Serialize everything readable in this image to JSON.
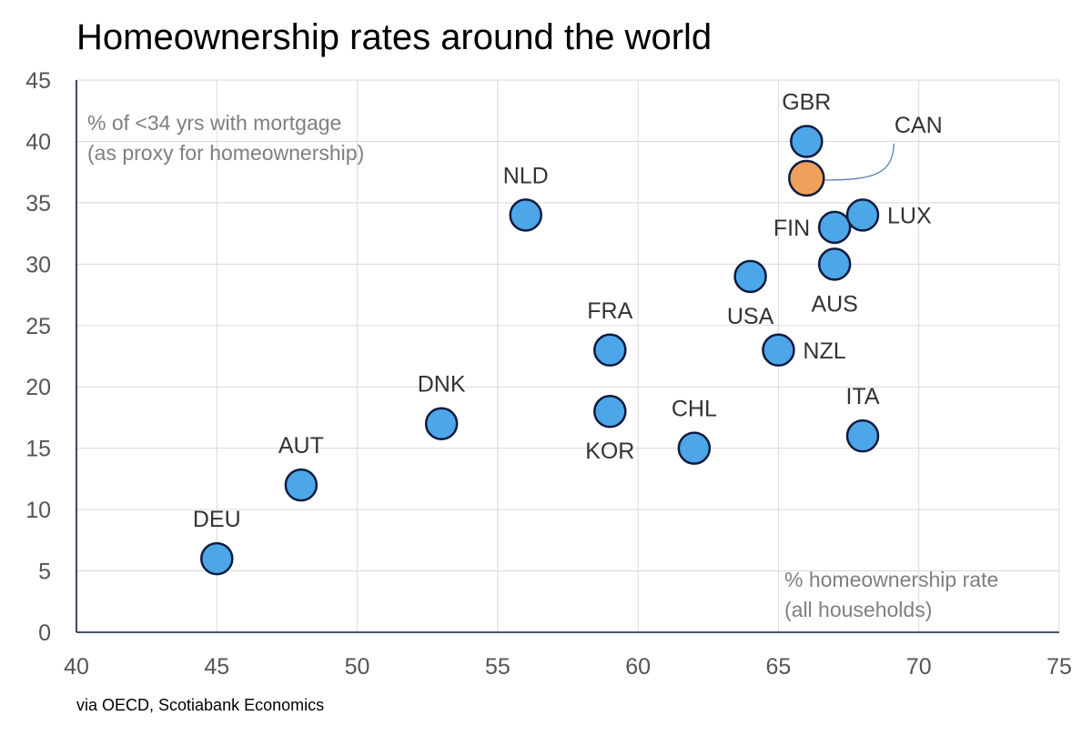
{
  "chart_data": {
    "type": "scatter",
    "title": "Homeownership rates around the world",
    "ylabel_lines": [
      "% of <34 yrs with mortgage",
      "(as proxy for homeownership)"
    ],
    "xlabel_lines": [
      "% homeownership rate",
      "(all households)"
    ],
    "source": "via OECD, Scotiabank Economics",
    "xlim": [
      40,
      75
    ],
    "ylim": [
      0,
      45
    ],
    "xticks": [
      "40",
      "45",
      "50",
      "55",
      "60",
      "65",
      "70",
      "75"
    ],
    "yticks": [
      "0",
      "5",
      "10",
      "15",
      "20",
      "25",
      "30",
      "35",
      "40",
      "45"
    ],
    "grid": true,
    "colors": {
      "default": "#4da6e8",
      "highlight": "#f0a05a",
      "outline": "#0d1b3e"
    },
    "points": [
      {
        "label": "DEU",
        "x": 45,
        "y": 6,
        "pos": "above"
      },
      {
        "label": "AUT",
        "x": 48,
        "y": 12,
        "pos": "above"
      },
      {
        "label": "DNK",
        "x": 53,
        "y": 17,
        "pos": "above"
      },
      {
        "label": "NLD",
        "x": 56,
        "y": 34,
        "pos": "above"
      },
      {
        "label": "FRA",
        "x": 59,
        "y": 23,
        "pos": "above"
      },
      {
        "label": "KOR",
        "x": 59,
        "y": 18,
        "pos": "below"
      },
      {
        "label": "CHL",
        "x": 62,
        "y": 15,
        "pos": "above"
      },
      {
        "label": "USA",
        "x": 64,
        "y": 29,
        "pos": "below"
      },
      {
        "label": "NZL",
        "x": 65,
        "y": 23,
        "pos": "right"
      },
      {
        "label": "GBR",
        "x": 66,
        "y": 40,
        "pos": "above"
      },
      {
        "label": "CAN",
        "x": 66,
        "y": 37,
        "pos": "callout",
        "highlight": true
      },
      {
        "label": "FIN",
        "x": 67,
        "y": 33,
        "pos": "left"
      },
      {
        "label": "AUS",
        "x": 67,
        "y": 30,
        "pos": "below"
      },
      {
        "label": "LUX",
        "x": 68,
        "y": 34,
        "pos": "right"
      },
      {
        "label": "ITA",
        "x": 68,
        "y": 16,
        "pos": "above"
      }
    ]
  }
}
